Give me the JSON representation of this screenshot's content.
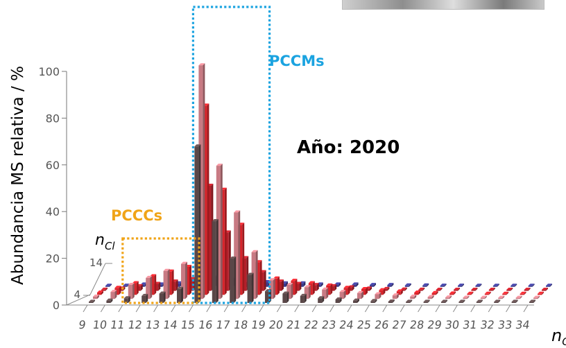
{
  "chart_data": {
    "type": "bar",
    "ylabel": "Abundancia MS relativa / %",
    "ylim": [
      0,
      100
    ],
    "yticks": [
      "0",
      "20",
      "40",
      "60",
      "80",
      "100"
    ],
    "x_axis_symbol": "n",
    "x_axis_subscript": "C",
    "x_ticks": [
      "9",
      "10",
      "11",
      "12",
      "13",
      "14",
      "15",
      "16",
      "17",
      "18",
      "19",
      "20",
      "21",
      "22",
      "23",
      "24",
      "25",
      "26",
      "27",
      "28",
      "29",
      "30",
      "31",
      "32",
      "33",
      "34"
    ],
    "depth_axis_symbol": "n",
    "depth_axis_subscript": "Cl",
    "depth_ticks": [
      "4",
      "14"
    ],
    "series": [
      {
        "values": [
          0.5,
          1,
          2,
          3,
          4,
          6,
          67,
          35,
          19,
          12,
          5,
          4,
          3,
          2,
          1.5,
          1,
          0.8,
          0.6,
          0.5,
          0.4,
          0.3,
          0.2,
          0.2,
          0.1,
          0.1,
          0.1
        ]
      },
      {
        "values": [
          1,
          3,
          6,
          9,
          12,
          15,
          100,
          57,
          37,
          20,
          8,
          6,
          5,
          4,
          3,
          2.5,
          2,
          1.5,
          1,
          0.8,
          0.6,
          0.5,
          0.4,
          0.3,
          0.2,
          0.1
        ]
      },
      {
        "values": [
          1,
          3,
          5,
          8,
          10,
          12,
          81,
          45,
          30,
          14,
          7,
          6,
          5,
          4,
          3,
          2.5,
          2,
          1.5,
          1,
          0.8,
          0.6,
          0.5,
          0.4,
          0.3,
          0.2,
          0.1
        ]
      },
      {
        "values": [
          0.5,
          1,
          2,
          3,
          4,
          5,
          45,
          25,
          14,
          8,
          4,
          3,
          2.5,
          2,
          1.5,
          1,
          0.8,
          0.6,
          0.5,
          0.4,
          0.3,
          0.3,
          0.2,
          0.2,
          0.1,
          0.1
        ]
      },
      {
        "values": [
          0.3,
          0.5,
          1,
          1,
          1.5,
          2,
          4,
          3,
          2,
          2,
          1.5,
          1.5,
          1,
          1,
          1,
          0.8,
          0.8,
          0.6,
          0.6,
          0.5,
          0.5,
          0.4,
          0.4,
          0.3,
          0.3,
          0.2
        ]
      }
    ],
    "series_colors": [
      "#5a4748",
      "#c87a83",
      "#d8232a",
      "#b4202a",
      "#3a3a8e"
    ],
    "grid": false,
    "annotations": [
      {
        "text": "PCCMs",
        "color": "#1ba3e0",
        "box_x_range": [
          "15",
          "18"
        ]
      },
      {
        "text": "PCCCs",
        "color": "#f0a418",
        "box_x_range": [
          "11",
          "14"
        ]
      },
      {
        "text": "Año: 2020",
        "color": "#000000"
      }
    ]
  }
}
